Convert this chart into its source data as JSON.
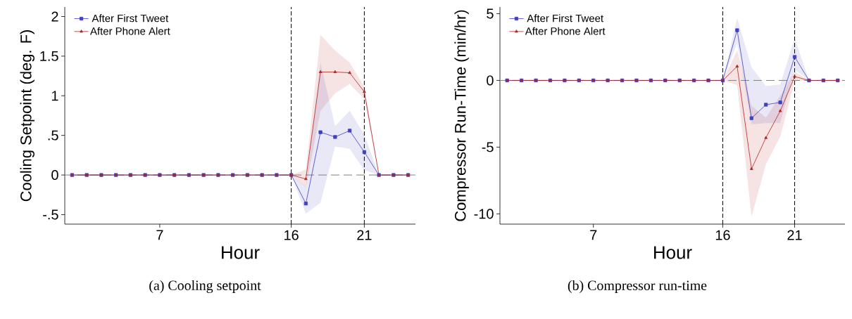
{
  "chart_data": [
    {
      "type": "line",
      "xlabel": "Hour",
      "ylabel": "Cooling Setpoint (deg. F)",
      "legend": "top left",
      "x": [
        1,
        2,
        3,
        4,
        5,
        6,
        7,
        8,
        9,
        10,
        11,
        12,
        13,
        14,
        15,
        16,
        17,
        18,
        19,
        20,
        21,
        22,
        23,
        24
      ],
      "series": [
        {
          "name": "After First Tweet",
          "color": "#4040c0",
          "marker": "square",
          "values": [
            0,
            0,
            0,
            0,
            0,
            0,
            0,
            0,
            0,
            0,
            0,
            0,
            0,
            0,
            0,
            0,
            -0.36,
            0.54,
            0.48,
            0.56,
            0.29,
            0,
            0,
            0
          ],
          "lower": [
            0,
            0,
            0,
            0,
            0,
            0,
            0,
            0,
            0,
            0,
            0,
            0,
            0,
            0,
            0,
            0,
            -0.49,
            -0.35,
            0.36,
            0.33,
            0.06,
            0,
            0,
            0
          ],
          "upper": [
            0,
            0,
            0,
            0,
            0,
            0,
            0,
            0,
            0,
            0,
            0,
            0,
            0,
            0,
            0,
            0,
            -0.15,
            1.42,
            0.62,
            0.81,
            0.51,
            0,
            0,
            0
          ]
        },
        {
          "name": "After Phone Alert",
          "color": "#b22222",
          "marker": "triangle",
          "values": [
            0,
            0,
            0,
            0,
            0,
            0,
            0,
            0,
            0,
            0,
            0,
            0,
            0,
            0,
            0,
            0,
            -0.05,
            1.3,
            1.3,
            1.29,
            1.05,
            0,
            0,
            0
          ],
          "lower": [
            0,
            0,
            0,
            0,
            0,
            0,
            0,
            0,
            0,
            0,
            0,
            0,
            0,
            0,
            0,
            0,
            -0.16,
            0.81,
            1.03,
            1.15,
            0.96,
            0,
            0,
            0
          ],
          "upper": [
            0,
            0,
            0,
            0,
            0,
            0,
            0,
            0,
            0,
            0,
            0,
            0,
            0,
            0,
            0,
            0,
            0.07,
            1.77,
            1.57,
            1.42,
            1.11,
            0,
            0,
            0
          ]
        }
      ],
      "xlim": [
        0.5,
        24.5
      ],
      "ylim": [
        -0.62,
        2.12
      ],
      "xticks": [
        7,
        16,
        21
      ],
      "yticks": [
        {
          "value": -0.5,
          "label": "-.5"
        },
        0,
        {
          "value": 0.5,
          "label": ".5"
        },
        1,
        1.5,
        2
      ],
      "ref_lines": [
        {
          "axis": "y",
          "value": 0,
          "color": "#808080",
          "line_style": "dashed"
        },
        {
          "axis": "x",
          "value": 16,
          "color": "#000000",
          "line_style": "dashed"
        },
        {
          "axis": "x",
          "value": 21,
          "color": "#000000",
          "line_style": "dashed"
        }
      ],
      "annotations": [
        "(a) Cooling setpoint"
      ]
    },
    {
      "type": "line",
      "xlabel": "Hour",
      "ylabel": "Compressor Run-Time (min/hr)",
      "legend": "top left",
      "x": [
        1,
        2,
        3,
        4,
        5,
        6,
        7,
        8,
        9,
        10,
        11,
        12,
        13,
        14,
        15,
        16,
        17,
        18,
        19,
        20,
        21,
        22,
        23,
        24
      ],
      "series": [
        {
          "name": "After First Tweet",
          "color": "#4040c0",
          "marker": "square",
          "values": [
            0,
            0,
            0,
            0,
            0,
            0,
            0,
            0,
            0,
            0,
            0,
            0,
            0,
            0,
            0,
            0,
            3.76,
            -2.83,
            -1.82,
            -1.65,
            1.76,
            0,
            0,
            0
          ],
          "lower": [
            0,
            0,
            0,
            0,
            0,
            0,
            0,
            0,
            0,
            0,
            0,
            0,
            0,
            0,
            0,
            0,
            2.8,
            -3.3,
            -3.2,
            -3.2,
            0.8,
            0,
            0,
            0
          ],
          "upper": [
            0,
            0,
            0,
            0,
            0,
            0,
            0,
            0,
            0,
            0,
            0,
            0,
            0,
            0,
            0,
            0,
            4.68,
            1.0,
            -0.43,
            -0.3,
            3.15,
            0,
            0,
            0
          ]
        },
        {
          "name": "After Phone Alert",
          "color": "#b22222",
          "marker": "triangle",
          "values": [
            0,
            0,
            0,
            0,
            0,
            0,
            0,
            0,
            0,
            0,
            0,
            0,
            0,
            0,
            0,
            0,
            1.05,
            -6.63,
            -4.3,
            -2.29,
            0.29,
            0,
            0,
            0
          ],
          "lower": [
            0,
            0,
            0,
            0,
            0,
            0,
            0,
            0,
            0,
            0,
            0,
            0,
            0,
            0,
            0,
            0,
            -0.34,
            -10.2,
            -6.3,
            -4.2,
            -0.07,
            0,
            0,
            0
          ],
          "upper": [
            0,
            0,
            0,
            0,
            0,
            0,
            0,
            0,
            0,
            0,
            0,
            0,
            0,
            0,
            0,
            0,
            2.26,
            -1.9,
            -2.8,
            -1.15,
            0.65,
            0,
            0,
            0
          ]
        }
      ],
      "xlim": [
        0.5,
        24.5
      ],
      "ylim": [
        -10.77,
        5.5
      ],
      "xticks": [
        7,
        16,
        21
      ],
      "yticks": [
        -10,
        -5,
        0,
        5
      ],
      "ref_lines": [
        {
          "axis": "y",
          "value": 0,
          "color": "#808080",
          "line_style": "dashed"
        },
        {
          "axis": "x",
          "value": 16,
          "color": "#000000",
          "line_style": "dashed"
        },
        {
          "axis": "x",
          "value": 21,
          "color": "#000000",
          "line_style": "dashed"
        }
      ],
      "annotations": [
        "(b) Compressor run-time"
      ]
    }
  ]
}
